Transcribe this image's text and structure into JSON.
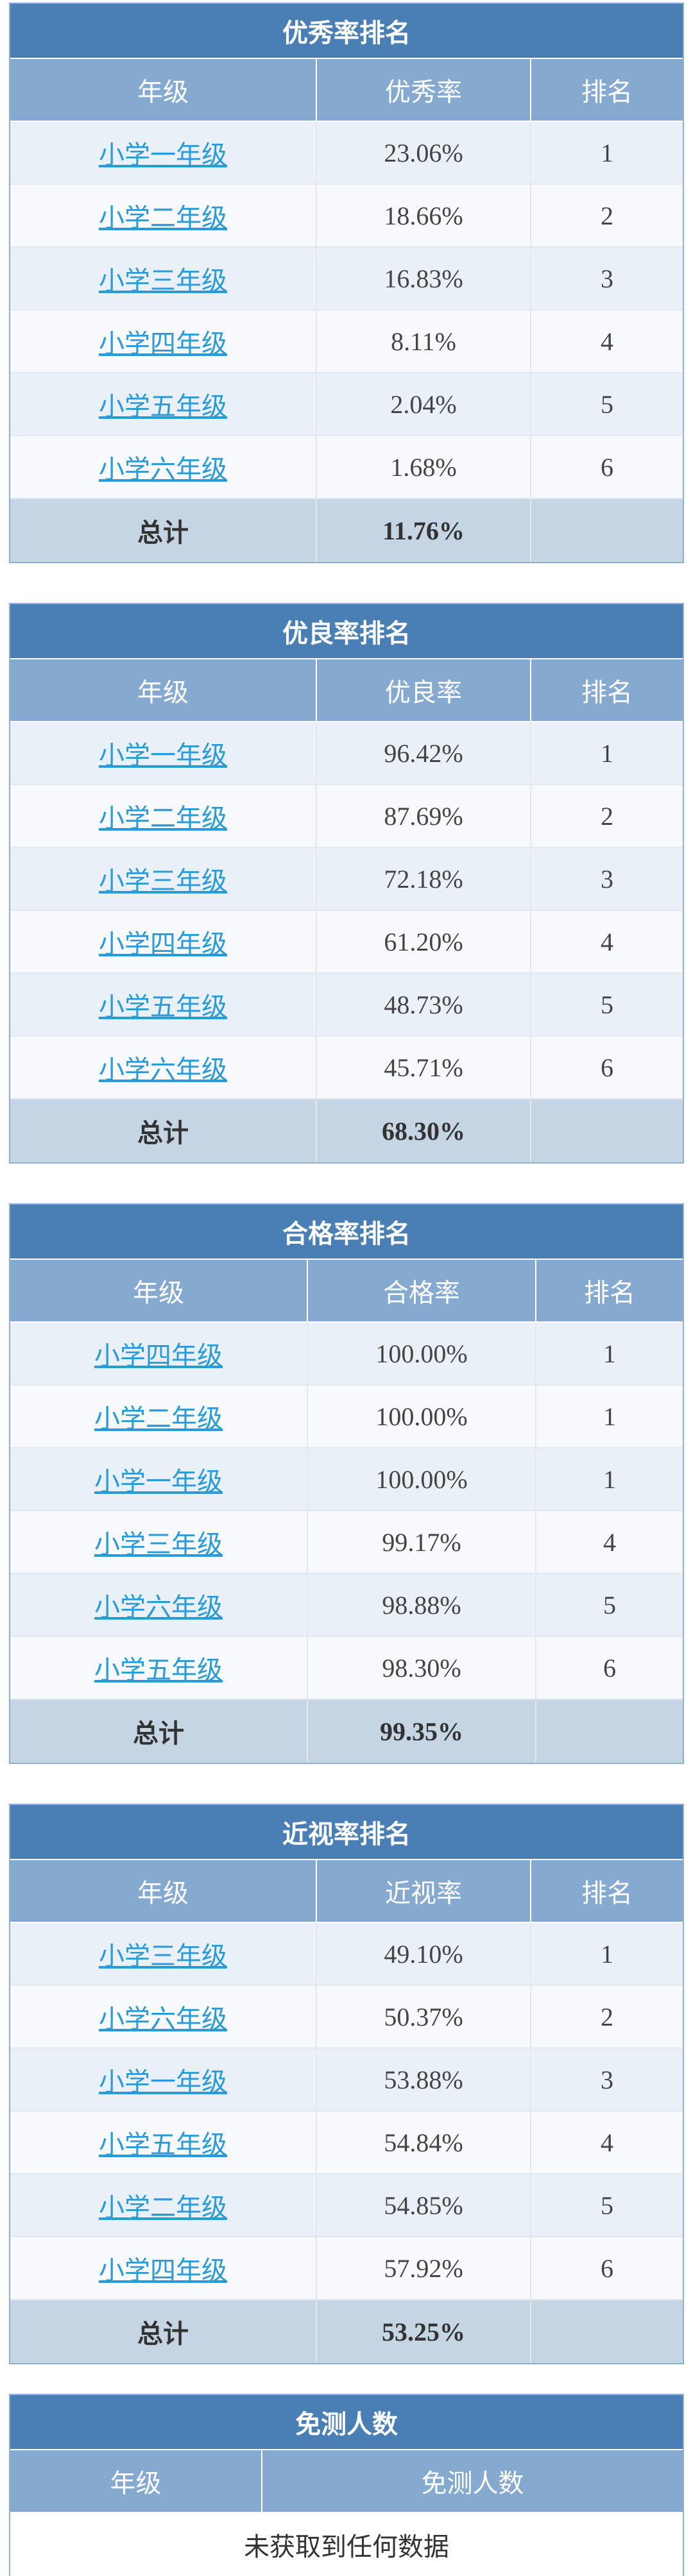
{
  "tables": [
    {
      "title": "优秀率排名",
      "headers": {
        "grade": "年级",
        "value": "优秀率",
        "rank": "排名"
      },
      "rows": [
        {
          "grade": "小学一年级",
          "value": "23.06%",
          "rank": "1"
        },
        {
          "grade": "小学二年级",
          "value": "18.66%",
          "rank": "2"
        },
        {
          "grade": "小学三年级",
          "value": "16.83%",
          "rank": "3"
        },
        {
          "grade": "小学四年级",
          "value": "8.11%",
          "rank": "4"
        },
        {
          "grade": "小学五年级",
          "value": "2.04%",
          "rank": "5"
        },
        {
          "grade": "小学六年级",
          "value": "1.68%",
          "rank": "6"
        }
      ],
      "total": {
        "label": "总计",
        "value": "11.76%",
        "rank": ""
      }
    },
    {
      "title": "优良率排名",
      "headers": {
        "grade": "年级",
        "value": "优良率",
        "rank": "排名"
      },
      "rows": [
        {
          "grade": "小学一年级",
          "value": "96.42%",
          "rank": "1"
        },
        {
          "grade": "小学二年级",
          "value": "87.69%",
          "rank": "2"
        },
        {
          "grade": "小学三年级",
          "value": "72.18%",
          "rank": "3"
        },
        {
          "grade": "小学四年级",
          "value": "61.20%",
          "rank": "4"
        },
        {
          "grade": "小学五年级",
          "value": "48.73%",
          "rank": "5"
        },
        {
          "grade": "小学六年级",
          "value": "45.71%",
          "rank": "6"
        }
      ],
      "total": {
        "label": "总计",
        "value": "68.30%",
        "rank": ""
      }
    },
    {
      "title": "合格率排名",
      "headers": {
        "grade": "年级",
        "value": "合格率",
        "rank": "排名"
      },
      "rows": [
        {
          "grade": "小学四年级",
          "value": "100.00%",
          "rank": "1"
        },
        {
          "grade": "小学二年级",
          "value": "100.00%",
          "rank": "1"
        },
        {
          "grade": "小学一年级",
          "value": "100.00%",
          "rank": "1"
        },
        {
          "grade": "小学三年级",
          "value": "99.17%",
          "rank": "4"
        },
        {
          "grade": "小学六年级",
          "value": "98.88%",
          "rank": "5"
        },
        {
          "grade": "小学五年级",
          "value": "98.30%",
          "rank": "6"
        }
      ],
      "total": {
        "label": "总计",
        "value": "99.35%",
        "rank": ""
      }
    },
    {
      "title": "近视率排名",
      "headers": {
        "grade": "年级",
        "value": "近视率",
        "rank": "排名"
      },
      "rows": [
        {
          "grade": "小学三年级",
          "value": "49.10%",
          "rank": "1"
        },
        {
          "grade": "小学六年级",
          "value": "50.37%",
          "rank": "2"
        },
        {
          "grade": "小学一年级",
          "value": "53.88%",
          "rank": "3"
        },
        {
          "grade": "小学五年级",
          "value": "54.84%",
          "rank": "4"
        },
        {
          "grade": "小学二年级",
          "value": "54.85%",
          "rank": "5"
        },
        {
          "grade": "小学四年级",
          "value": "57.92%",
          "rank": "6"
        }
      ],
      "total": {
        "label": "总计",
        "value": "53.25%",
        "rank": ""
      }
    }
  ],
  "exempt": {
    "title": "免测人数",
    "headers": {
      "grade": "年级",
      "count": "免测人数"
    },
    "empty_message": "未获取到任何数据"
  }
}
